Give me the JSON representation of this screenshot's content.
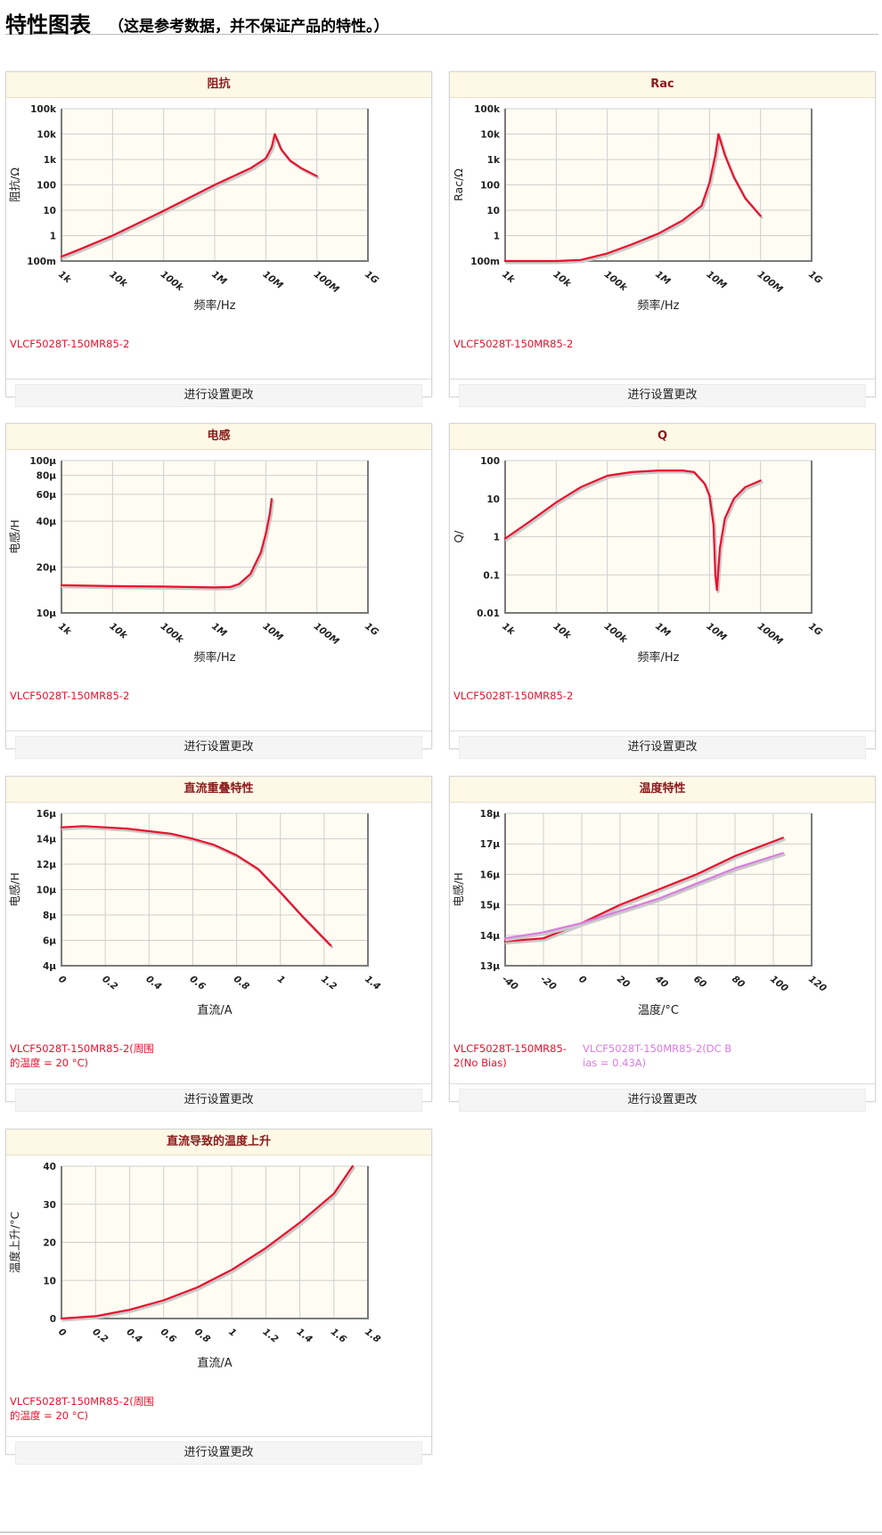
{
  "page": {
    "title": "特性图表",
    "subtitle": "（这是参考数据，并不保证产品的特性。）",
    "change_settings_label": "进行设置更改"
  },
  "colors": {
    "series_red": "#e8112d",
    "series_violet": "#d97ce0",
    "plot_bg": "#fffcf3",
    "card_title_bg": "#fef8e7",
    "card_title_text": "#8b1a1a"
  },
  "chart_data": [
    {
      "id": "impedance",
      "type": "line",
      "title": "阻抗",
      "xlabel": "频率/Hz",
      "ylabel": "阻抗/Ω",
      "xscale": "log",
      "yscale": "log",
      "xlim": [
        1000,
        1000000000
      ],
      "ylim": [
        0.1,
        100000
      ],
      "xticks": [
        1000,
        10000,
        100000,
        1000000,
        10000000,
        100000000,
        1000000000
      ],
      "xtick_labels": [
        "1k",
        "10k",
        "100k",
        "1M",
        "10M",
        "100M",
        "1G"
      ],
      "yticks": [
        0.1,
        1,
        10,
        100,
        1000,
        10000,
        100000
      ],
      "ytick_labels": [
        "100m",
        "1",
        "10",
        "100",
        "1k",
        "10k",
        "100k"
      ],
      "grid": true,
      "series": [
        {
          "name": "VLCF5028T-150MR85-2",
          "color": "#e8112d",
          "x": [
            1000,
            2000,
            10000,
            100000,
            1000000,
            5000000,
            10000000,
            13000000,
            15000000,
            20000000,
            30000000,
            50000000,
            100000000
          ],
          "y": [
            0.15,
            0.26,
            1.0,
            9.5,
            100,
            450,
            1100,
            3000,
            10000,
            2500,
            900,
            450,
            220
          ]
        }
      ]
    },
    {
      "id": "rac",
      "type": "line",
      "title": "Rac",
      "xlabel": "频率/Hz",
      "ylabel": "Rac/Ω",
      "xscale": "log",
      "yscale": "log",
      "xlim": [
        1000,
        1000000000
      ],
      "ylim": [
        0.1,
        100000
      ],
      "xticks": [
        1000,
        10000,
        100000,
        1000000,
        10000000,
        100000000,
        1000000000
      ],
      "xtick_labels": [
        "1k",
        "10k",
        "100k",
        "1M",
        "10M",
        "100M",
        "1G"
      ],
      "yticks": [
        0.1,
        1,
        10,
        100,
        1000,
        10000,
        100000
      ],
      "ytick_labels": [
        "100m",
        "1",
        "10",
        "100",
        "1k",
        "10k",
        "100k"
      ],
      "grid": true,
      "series": [
        {
          "name": "VLCF5028T-150MR85-2",
          "color": "#e8112d",
          "x": [
            1000,
            10000,
            30000,
            100000,
            300000,
            1000000,
            3000000,
            7000000,
            10000000,
            13000000,
            15000000,
            20000000,
            30000000,
            50000000,
            100000000
          ],
          "y": [
            0.1,
            0.1,
            0.11,
            0.2,
            0.45,
            1.2,
            4.0,
            15,
            120,
            1500,
            10000,
            1500,
            200,
            30,
            6
          ]
        }
      ]
    },
    {
      "id": "inductance",
      "type": "line",
      "title": "电感",
      "xlabel": "频率/Hz",
      "ylabel": "电感/H",
      "xscale": "log",
      "yscale": "log",
      "xlim": [
        1000,
        1000000000
      ],
      "ylim": [
        1e-05,
        0.0001
      ],
      "xticks": [
        1000,
        10000,
        100000,
        1000000,
        10000000,
        100000000,
        1000000000
      ],
      "xtick_labels": [
        "1k",
        "10k",
        "100k",
        "1M",
        "10M",
        "100M",
        "1G"
      ],
      "yticks": [
        1e-05,
        2e-05,
        4e-05,
        6e-05,
        8e-05,
        0.0001
      ],
      "ytick_labels": [
        "10μ",
        "20μ",
        "40μ",
        "60μ",
        "80μ",
        "100μ"
      ],
      "grid": true,
      "series": [
        {
          "name": "VLCF5028T-150MR85-2",
          "color": "#e8112d",
          "x": [
            1000,
            10000,
            100000,
            1000000,
            2000000,
            3000000,
            5000000,
            8000000,
            10000000,
            12000000,
            13000000
          ],
          "y": [
            1.52e-05,
            1.5e-05,
            1.49e-05,
            1.47e-05,
            1.48e-05,
            1.55e-05,
            1.8e-05,
            2.5e-05,
            3.3e-05,
            4.5e-05,
            5.6e-05
          ]
        }
      ]
    },
    {
      "id": "q",
      "type": "line",
      "title": "Q",
      "xlabel": "频率/Hz",
      "ylabel": "Q/",
      "xscale": "log",
      "yscale": "log",
      "xlim": [
        1000,
        1000000000
      ],
      "ylim": [
        0.01,
        100
      ],
      "xticks": [
        1000,
        10000,
        100000,
        1000000,
        10000000,
        100000000,
        1000000000
      ],
      "xtick_labels": [
        "1k",
        "10k",
        "100k",
        "1M",
        "10M",
        "100M",
        "1G"
      ],
      "yticks": [
        0.01,
        0.1,
        1,
        10,
        100
      ],
      "ytick_labels": [
        "0.01",
        "0.1",
        "1",
        "10",
        "100"
      ],
      "grid": true,
      "series": [
        {
          "name": "VLCF5028T-150MR85-2",
          "color": "#e8112d",
          "x": [
            1000,
            3000,
            10000,
            30000,
            100000,
            300000,
            1000000,
            3000000,
            5000000,
            8000000,
            10000000,
            12000000,
            13000000,
            14000000,
            16000000,
            20000000,
            30000000,
            50000000,
            100000000
          ],
          "y": [
            0.9,
            2.5,
            8,
            20,
            40,
            50,
            55,
            55,
            50,
            25,
            12,
            2,
            0.1,
            0.04,
            0.5,
            3,
            10,
            20,
            30
          ]
        }
      ]
    },
    {
      "id": "dc_superposition",
      "type": "line",
      "title": "直流重叠特性",
      "xlabel": "直流/A",
      "ylabel": "电感/H",
      "xlim": [
        0,
        1.4
      ],
      "ylim": [
        4e-06,
        1.6e-05
      ],
      "xticks": [
        0,
        0.2,
        0.4,
        0.6,
        0.8,
        1,
        1.2,
        1.4
      ],
      "xtick_labels": [
        "0",
        "0.2",
        "0.4",
        "0.6",
        "0.8",
        "1",
        "1.2",
        "1.4"
      ],
      "yticks": [
        4e-06,
        6e-06,
        8e-06,
        1e-05,
        1.2e-05,
        1.4e-05,
        1.6e-05
      ],
      "ytick_labels": [
        "4μ",
        "6μ",
        "8μ",
        "10μ",
        "12μ",
        "14μ",
        "16μ"
      ],
      "grid": true,
      "series": [
        {
          "name": "VLCF5028T-150MR85-2(周围的温度 = 20 °C)",
          "color": "#e8112d",
          "x": [
            0,
            0.1,
            0.2,
            0.3,
            0.4,
            0.5,
            0.6,
            0.7,
            0.8,
            0.9,
            1.0,
            1.1,
            1.23
          ],
          "y": [
            1.49e-05,
            1.5e-05,
            1.49e-05,
            1.48e-05,
            1.46e-05,
            1.44e-05,
            1.4e-05,
            1.35e-05,
            1.27e-05,
            1.16e-05,
            9.8e-06,
            7.9e-06,
            5.6e-06
          ]
        }
      ]
    },
    {
      "id": "temperature",
      "type": "line",
      "title": "温度特性",
      "xlabel": "温度/°C",
      "ylabel": "电感/H",
      "xlim": [
        -40,
        120
      ],
      "ylim": [
        1.3e-05,
        1.8e-05
      ],
      "xticks": [
        -40,
        -20,
        0,
        20,
        40,
        60,
        80,
        100,
        120
      ],
      "xtick_labels": [
        "-40",
        "-20",
        "0",
        "20",
        "40",
        "60",
        "80",
        "100",
        "120"
      ],
      "yticks": [
        1.3e-05,
        1.4e-05,
        1.5e-05,
        1.6e-05,
        1.7e-05,
        1.8e-05
      ],
      "ytick_labels": [
        "13μ",
        "14μ",
        "15μ",
        "16μ",
        "17μ",
        "18μ"
      ],
      "grid": true,
      "series": [
        {
          "name": "VLCF5028T-150MR85-2(No Bias)",
          "color": "#e8112d",
          "x": [
            -40,
            -20,
            0,
            20,
            40,
            60,
            80,
            105
          ],
          "y": [
            1.38e-05,
            1.39e-05,
            1.44e-05,
            1.5e-05,
            1.55e-05,
            1.6e-05,
            1.66e-05,
            1.72e-05
          ]
        },
        {
          "name": "VLCF5028T-150MR85-2(DC Bias = 0.43A)",
          "color": "#d97ce0",
          "x": [
            -40,
            -20,
            0,
            20,
            40,
            60,
            80,
            105
          ],
          "y": [
            1.39e-05,
            1.41e-05,
            1.44e-05,
            1.48e-05,
            1.52e-05,
            1.57e-05,
            1.62e-05,
            1.67e-05
          ]
        }
      ]
    },
    {
      "id": "temp_rise",
      "type": "line",
      "title": "直流导致的温度上升",
      "xlabel": "直流/A",
      "ylabel": "温度上升/°C",
      "xlim": [
        0,
        1.8
      ],
      "ylim": [
        0,
        40
      ],
      "xticks": [
        0,
        0.2,
        0.4,
        0.6,
        0.8,
        1,
        1.2,
        1.4,
        1.6,
        1.8
      ],
      "xtick_labels": [
        "0",
        "0.2",
        "0.4",
        "0.6",
        "0.8",
        "1",
        "1.2",
        "1.4",
        "1.6",
        "1.8"
      ],
      "yticks": [
        0,
        10,
        20,
        30,
        40
      ],
      "ytick_labels": [
        "0",
        "10",
        "20",
        "30",
        "40"
      ],
      "grid": true,
      "series": [
        {
          "name": "VLCF5028T-150MR85-2(周围的温度 = 20 °C)",
          "color": "#e8112d",
          "x": [
            0,
            0.2,
            0.4,
            0.6,
            0.8,
            1.0,
            1.2,
            1.4,
            1.6,
            1.71
          ],
          "y": [
            0,
            0.6,
            2.3,
            4.8,
            8.2,
            12.8,
            18.5,
            25.2,
            32.8,
            40
          ]
        }
      ]
    }
  ],
  "legends": {
    "impedance": [
      "VLCF5028T-150MR85-2"
    ],
    "rac": [
      "VLCF5028T-150MR85-2"
    ],
    "inductance": [
      "VLCF5028T-150MR85-2"
    ],
    "q": [
      "VLCF5028T-150MR85-2"
    ],
    "dc_superposition": [
      "VLCF5028T-150MR85-2(周围",
      "的温度 = 20 °C)"
    ],
    "temperature_1": [
      "VLCF5028T-150MR85-",
      "2(No Bias)"
    ],
    "temperature_2": [
      "VLCF5028T-150MR85-2(DC B",
      "ias = 0.43A)"
    ],
    "temp_rise": [
      "VLCF5028T-150MR85-2(周围",
      "的温度 = 20 °C)"
    ]
  }
}
